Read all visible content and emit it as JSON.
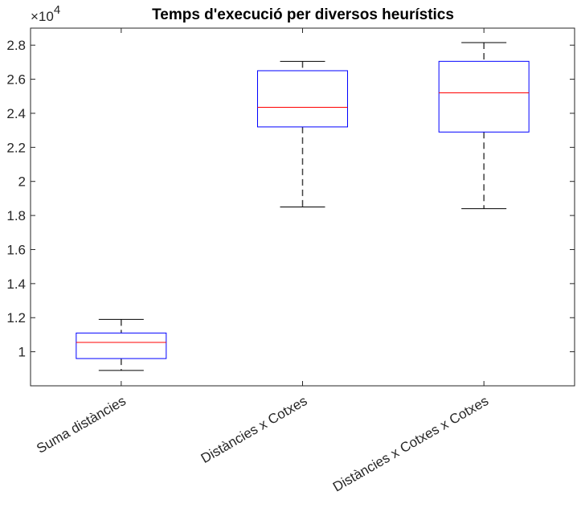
{
  "chart_data": {
    "type": "boxplot",
    "title": "Temps d'execució per diversos heurístics",
    "xlabel": "",
    "ylabel": "",
    "categories": [
      "Suma distàncies",
      "Distàncies x Cotxes",
      "Distàncies x Cotxes x Cotxes"
    ],
    "y_multiplier": {
      "base": "×10",
      "exponent": "4"
    },
    "yticks": [
      1,
      1.2,
      1.4,
      1.6,
      1.8,
      2,
      2.2,
      2.4,
      2.6,
      2.8
    ],
    "yticklabels": [
      "1",
      "1.2",
      "1.4",
      "1.6",
      "1.8",
      "2",
      "2.2",
      "2.4",
      "2.6",
      "2.8"
    ],
    "ylim": [
      0.8,
      2.9
    ],
    "boxes": [
      {
        "whisker_low": 0.89,
        "q1": 0.96,
        "median": 1.055,
        "q3": 1.11,
        "whisker_high": 1.19
      },
      {
        "whisker_low": 1.85,
        "q1": 2.32,
        "median": 2.435,
        "q3": 2.65,
        "whisker_high": 2.705
      },
      {
        "whisker_low": 1.84,
        "q1": 2.29,
        "median": 2.52,
        "q3": 2.705,
        "whisker_high": 2.815
      }
    ],
    "grid": false,
    "colors": {
      "box": "#0000ff",
      "median": "#ff0000",
      "whisker": "#000000"
    }
  }
}
